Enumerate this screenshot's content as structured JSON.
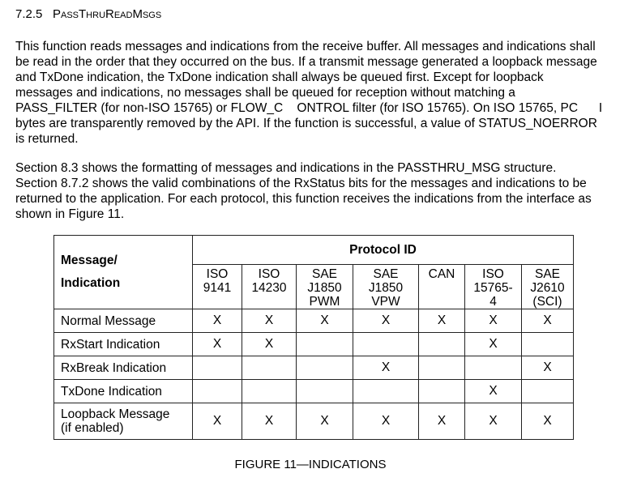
{
  "section": {
    "number": "7.2.5",
    "title": "PassThruReadMsgs"
  },
  "paragraph1": [
    "This function reads messages and indications from the receive buffer. All messages and indications shall",
    "be read in the order that they occurred on the bus. If a transmit message generated a loopback message",
    "and TxDone indication, the TxDone indication shall always be queued first. Except for loopback",
    "messages and indications, no messages shall be queued for reception without matching a",
    "PASS_FILTER (for non-ISO 15765) or FLOW_C    ONTROL filter (for ISO 15765). On ISO 15765, PC      I",
    "bytes are transparently removed by the API. If the function is successful, a value of STATUS_NOERROR",
    "is returned."
  ],
  "paragraph2": [
    "Section 8.3 shows the formatting of messages and indications in the PASSTHRU_MSG structure.",
    "Section 8.7.2 shows the valid combinations of the RxStatus bits for the messages and indications to be",
    "returned to the application. For each protocol, this function receives the indications from the interface as",
    "shown in Figure 11."
  ],
  "table": {
    "row_header": [
      "Message/",
      "Indication"
    ],
    "group_header": "Protocol ID",
    "columns": [
      [
        "ISO",
        "9141"
      ],
      [
        "ISO",
        "14230"
      ],
      [
        "SAE",
        "J1850",
        "PWM"
      ],
      [
        "SAE",
        "J1850",
        "VPW"
      ],
      [
        "CAN"
      ],
      [
        "ISO",
        "15765-",
        "4"
      ],
      [
        "SAE",
        "J2610",
        "(SCI)"
      ]
    ],
    "rows": [
      {
        "label": [
          "Normal Message"
        ],
        "cells": [
          "X",
          "X",
          "X",
          "X",
          "X",
          "X",
          "X"
        ]
      },
      {
        "label": [
          "RxStart Indication"
        ],
        "cells": [
          "X",
          "X",
          "",
          "",
          "",
          "X",
          ""
        ]
      },
      {
        "label": [
          "RxBreak Indication"
        ],
        "cells": [
          "",
          "",
          "",
          "X",
          "",
          "",
          "X"
        ]
      },
      {
        "label": [
          "TxDone Indication"
        ],
        "cells": [
          "",
          "",
          "",
          "",
          "",
          "X",
          ""
        ]
      },
      {
        "label": [
          "Loopback Message",
          "(if enabled)"
        ],
        "cells": [
          "X",
          "X",
          "X",
          "X",
          "X",
          "X",
          "X"
        ]
      }
    ]
  },
  "caption": "FIGURE 11—INDICATIONS"
}
